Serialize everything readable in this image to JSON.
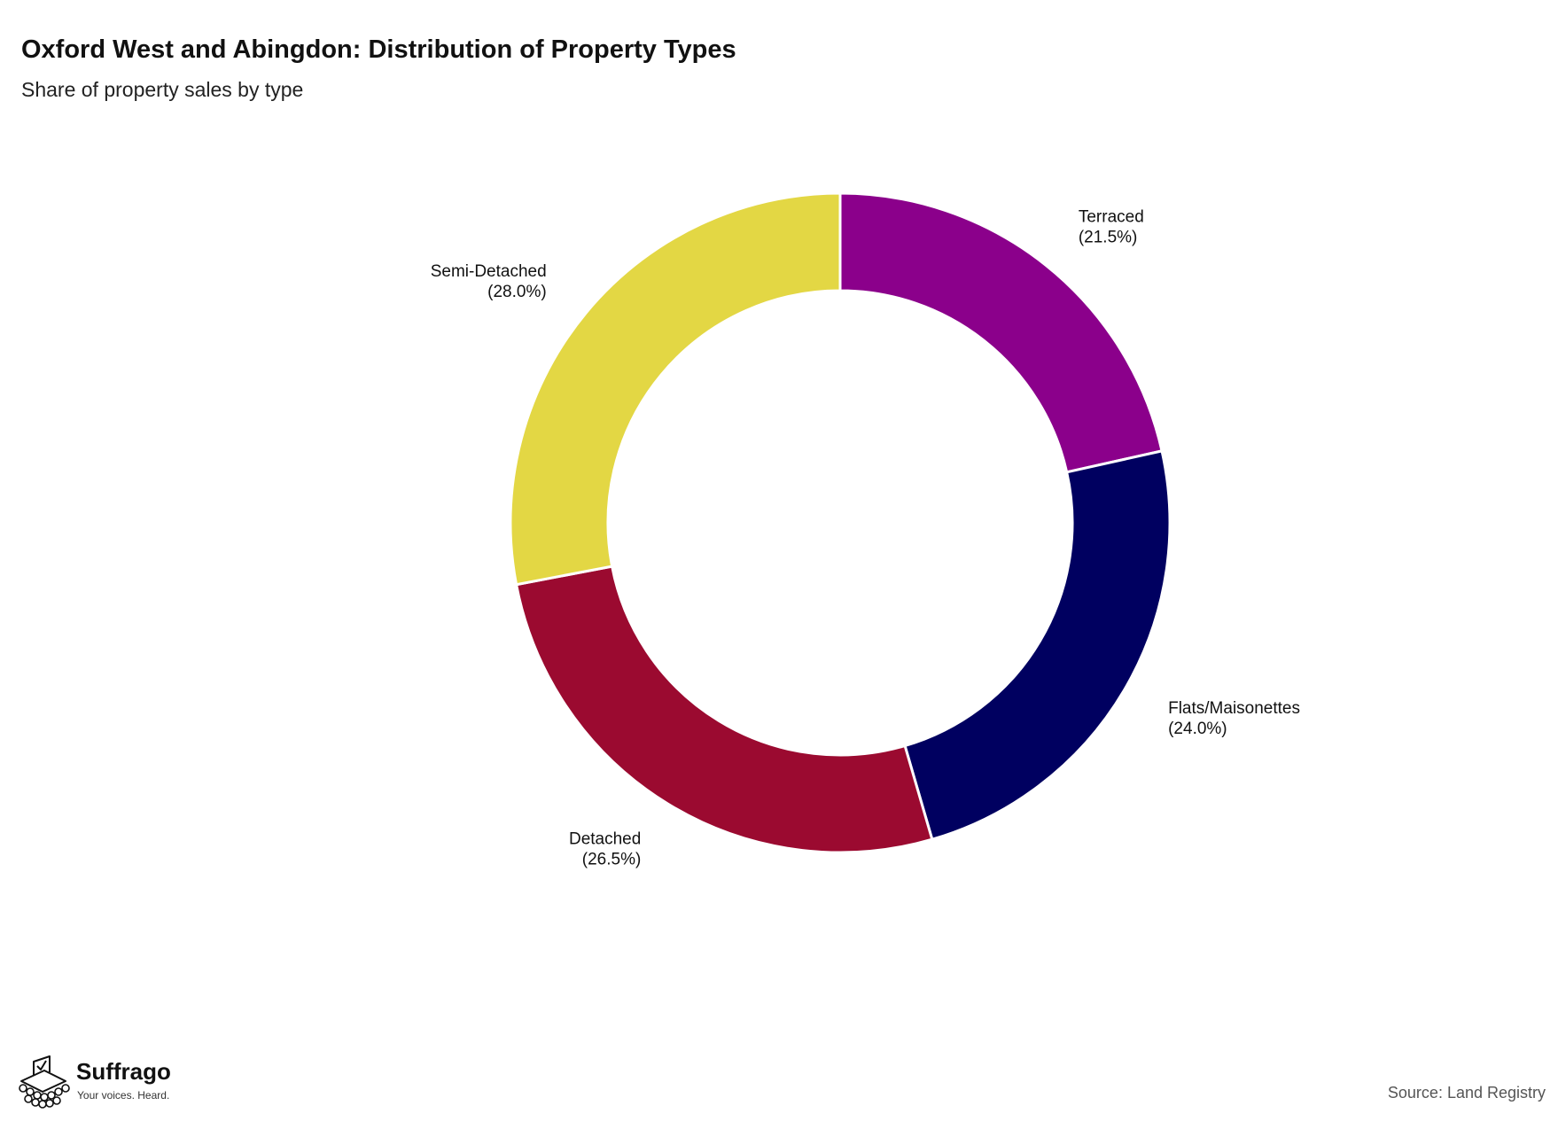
{
  "title": "Oxford West and Abingdon: Distribution of Property Types",
  "subtitle": "Share of property sales by type",
  "source": "Source: Land Registry",
  "brand": {
    "name": "Suffrago",
    "tagline": "Your voices. Heard.",
    "icon": "ballot-box-crowd-icon"
  },
  "chart_data": {
    "type": "pie",
    "variant": "donut",
    "slices": [
      {
        "label": "Terraced",
        "value": 21.5,
        "display": "(21.5%)",
        "color": "#8b008b"
      },
      {
        "label": "Flats/Maisonettes",
        "value": 24.0,
        "display": "(24.0%)",
        "color": "#000060"
      },
      {
        "label": "Detached",
        "value": 26.5,
        "display": "(26.5%)",
        "color": "#9b0a30"
      },
      {
        "label": "Semi-Detached",
        "value": 28.0,
        "display": "(28.0%)",
        "color": "#e3d744"
      }
    ],
    "start": "12 o'clock",
    "direction": "clockwise",
    "legend": "none"
  }
}
